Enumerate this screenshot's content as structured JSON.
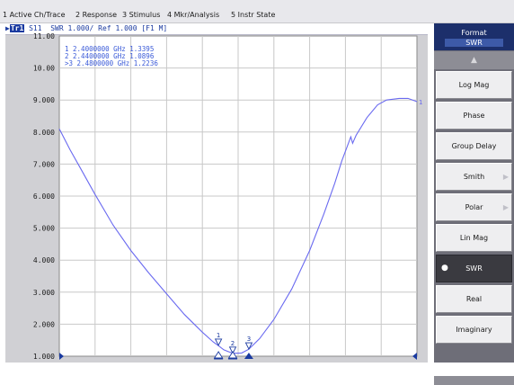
{
  "menu": [
    "1 Active Ch/Trace",
    "2 Response",
    "3 Stimulus",
    "4 Mkr/Analysis",
    "5 Instr State"
  ],
  "trace": {
    "id": "Tr1",
    "header": "S11  SWR 1.000/ Ref 1.000 [F1 M]",
    "markers": [
      {
        "label": " 1",
        "freq": "2.4000000 GHz",
        "value": "1.3395"
      },
      {
        "label": " 2",
        "freq": "2.4400000 GHz",
        "value": "1.0896"
      },
      {
        "label": ">3",
        "freq": "2.4800000 GHz",
        "value": "1.2236"
      }
    ],
    "end_label": "1",
    "marker3_label": "3"
  },
  "y_ticks": [
    "11.00",
    "10.00",
    "9.000",
    "8.000",
    "7.000",
    "6.000",
    "5.000",
    "4.000",
    "3.000",
    "2.000",
    "1.000"
  ],
  "chart_data": {
    "type": "line",
    "ylim": [
      1,
      11
    ],
    "xlim": [
      0,
      10
    ],
    "grid": true,
    "series": [
      {
        "color": "#6a6af0",
        "points": [
          [
            0,
            8.1
          ],
          [
            0.3,
            7.45
          ],
          [
            0.6,
            6.85
          ],
          [
            1.0,
            6.05
          ],
          [
            1.5,
            5.1
          ],
          [
            2.0,
            4.3
          ],
          [
            2.5,
            3.6
          ],
          [
            3.0,
            2.95
          ],
          [
            3.5,
            2.3
          ],
          [
            4.0,
            1.75
          ],
          [
            4.3,
            1.45
          ],
          [
            4.45,
            1.33
          ],
          [
            4.6,
            1.2
          ],
          [
            4.85,
            1.09
          ],
          [
            5.1,
            1.1
          ],
          [
            5.3,
            1.22
          ],
          [
            5.6,
            1.55
          ],
          [
            6.0,
            2.15
          ],
          [
            6.5,
            3.1
          ],
          [
            7.0,
            4.3
          ],
          [
            7.4,
            5.45
          ],
          [
            7.7,
            6.4
          ],
          [
            7.9,
            7.1
          ],
          [
            8.05,
            7.55
          ],
          [
            8.15,
            7.85
          ],
          [
            8.2,
            7.65
          ],
          [
            8.3,
            7.9
          ],
          [
            8.6,
            8.45
          ],
          [
            8.9,
            8.85
          ],
          [
            9.15,
            9.0
          ],
          [
            9.5,
            9.05
          ],
          [
            9.75,
            9.05
          ],
          [
            10.0,
            8.95
          ]
        ]
      }
    ],
    "markers": [
      {
        "label": "1",
        "x": 4.45,
        "y": 1.3395
      },
      {
        "label": "2",
        "x": 4.85,
        "y": 1.0896
      },
      {
        "label": "3",
        "x": 5.3,
        "y": 1.2236
      }
    ]
  },
  "side": {
    "title": "Format",
    "current": "SWR",
    "buttons": [
      {
        "label": "Log Mag",
        "submenu": false
      },
      {
        "label": "Phase",
        "submenu": false
      },
      {
        "label": "Group Delay",
        "submenu": false
      },
      {
        "label": "Smith",
        "submenu": true
      },
      {
        "label": "Polar",
        "submenu": true
      },
      {
        "label": "Lin Mag",
        "submenu": false
      },
      {
        "label": "SWR",
        "submenu": false,
        "active": true
      },
      {
        "label": "Real",
        "submenu": false
      },
      {
        "label": "Imaginary",
        "submenu": false
      }
    ]
  },
  "colors": {
    "trace": "#6a6af0",
    "marker": "#1a3aa0",
    "header_blue": "#1c2f6b"
  }
}
